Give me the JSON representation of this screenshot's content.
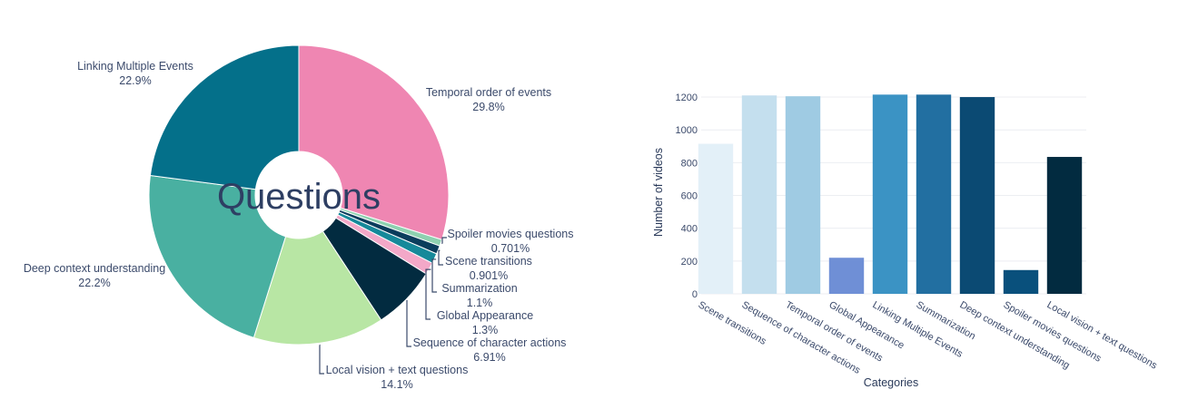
{
  "chart_data": [
    {
      "type": "pie",
      "hole": true,
      "center_text": "Questions",
      "slices": [
        {
          "label": "Temporal order of events",
          "percent_label": "29.8%",
          "value": 29.8,
          "color": "#ef86b2"
        },
        {
          "label": "Spoiler movies questions",
          "percent_label": "0.701%",
          "value": 0.701,
          "color": "#8ed1b0"
        },
        {
          "label": "Scene transitions",
          "percent_label": "0.901%",
          "value": 0.901,
          "color": "#0a3d5c"
        },
        {
          "label": "Summarization",
          "percent_label": "1.1%",
          "value": 1.1,
          "color": "#16899a"
        },
        {
          "label": "Global Appearance",
          "percent_label": "1.3%",
          "value": 1.3,
          "color": "#f3a8c8"
        },
        {
          "label": "Sequence of character actions",
          "percent_label": "6.91%",
          "value": 6.91,
          "color": "#022b40"
        },
        {
          "label": "Local vision + text questions",
          "percent_label": "14.1%",
          "value": 14.1,
          "color": "#b8e6a4"
        },
        {
          "label": "Deep context understanding",
          "percent_label": "22.2%",
          "value": 22.2,
          "color": "#49b0a1"
        },
        {
          "label": "Linking Multiple Events",
          "percent_label": "22.9%",
          "value": 22.9,
          "color": "#04708a"
        }
      ]
    },
    {
      "type": "bar",
      "xlabel": "Categories",
      "ylabel": "Number of videos",
      "ylim": [
        0,
        1250
      ],
      "yticks": [
        0,
        200,
        400,
        600,
        800,
        1000,
        1200
      ],
      "grid": true,
      "categories": [
        "Scene transitions",
        "Sequence of character actions",
        "Temporal order of events",
        "Global Appearance",
        "Linking Multiple Events",
        "Summarization",
        "Deep context understanding",
        "Spoiler movies questions",
        "Local vision + text questions"
      ],
      "values": [
        915,
        1210,
        1205,
        220,
        1215,
        1215,
        1200,
        145,
        835
      ],
      "colors": [
        "#e3f0f8",
        "#c4dfee",
        "#9fcbe3",
        "#6f8fd6",
        "#3b93c4",
        "#226fa1",
        "#0b4a73",
        "#09507c",
        "#022b40"
      ]
    }
  ]
}
